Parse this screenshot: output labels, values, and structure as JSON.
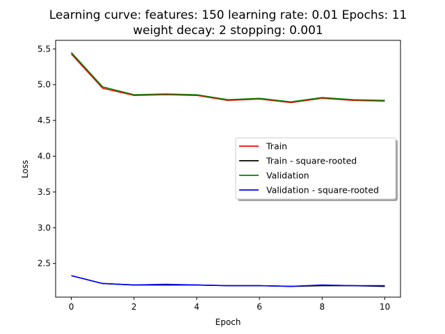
{
  "chart_data": {
    "type": "line",
    "title_line1": "Learning curve: features: 150 learning rate: 0.01 Epochs: 11",
    "title_line2": "weight decay: 2 stopping: 0.001",
    "xlabel": "Epoch",
    "ylabel": "Loss",
    "xlim": [
      -0.5,
      10.5
    ],
    "ylim": [
      2.03,
      5.62
    ],
    "xticks": [
      0,
      2,
      4,
      6,
      8,
      10
    ],
    "yticks": [
      2.5,
      3.0,
      3.5,
      4.0,
      4.5,
      5.0,
      5.5
    ],
    "xtick_labels": [
      "0",
      "2",
      "4",
      "6",
      "8",
      "10"
    ],
    "ytick_labels": [
      "2.5",
      "3.0",
      "3.5",
      "4.0",
      "4.5",
      "5.0",
      "5.5"
    ],
    "x": [
      0,
      1,
      2,
      3,
      4,
      5,
      6,
      7,
      8,
      9,
      10
    ],
    "series": [
      {
        "name": "Train",
        "color": "#ff0000",
        "values": [
          5.43,
          4.95,
          4.85,
          4.86,
          4.85,
          4.78,
          4.8,
          4.75,
          4.81,
          4.78,
          4.77
        ]
      },
      {
        "name": "Train - square-rooted",
        "color": "#000000",
        "values": [
          2.33,
          2.22,
          2.2,
          2.2,
          2.2,
          2.19,
          2.19,
          2.18,
          2.19,
          2.19,
          2.18
        ]
      },
      {
        "name": "Validation",
        "color": "#008000",
        "values": [
          5.45,
          4.97,
          4.86,
          4.87,
          4.86,
          4.79,
          4.81,
          4.76,
          4.82,
          4.79,
          4.78
        ]
      },
      {
        "name": "Validation - square-rooted",
        "color": "#0000ff",
        "values": [
          2.33,
          2.22,
          2.2,
          2.21,
          2.2,
          2.19,
          2.19,
          2.18,
          2.2,
          2.19,
          2.19
        ]
      }
    ],
    "legend_position": "center-right",
    "grid": false
  }
}
